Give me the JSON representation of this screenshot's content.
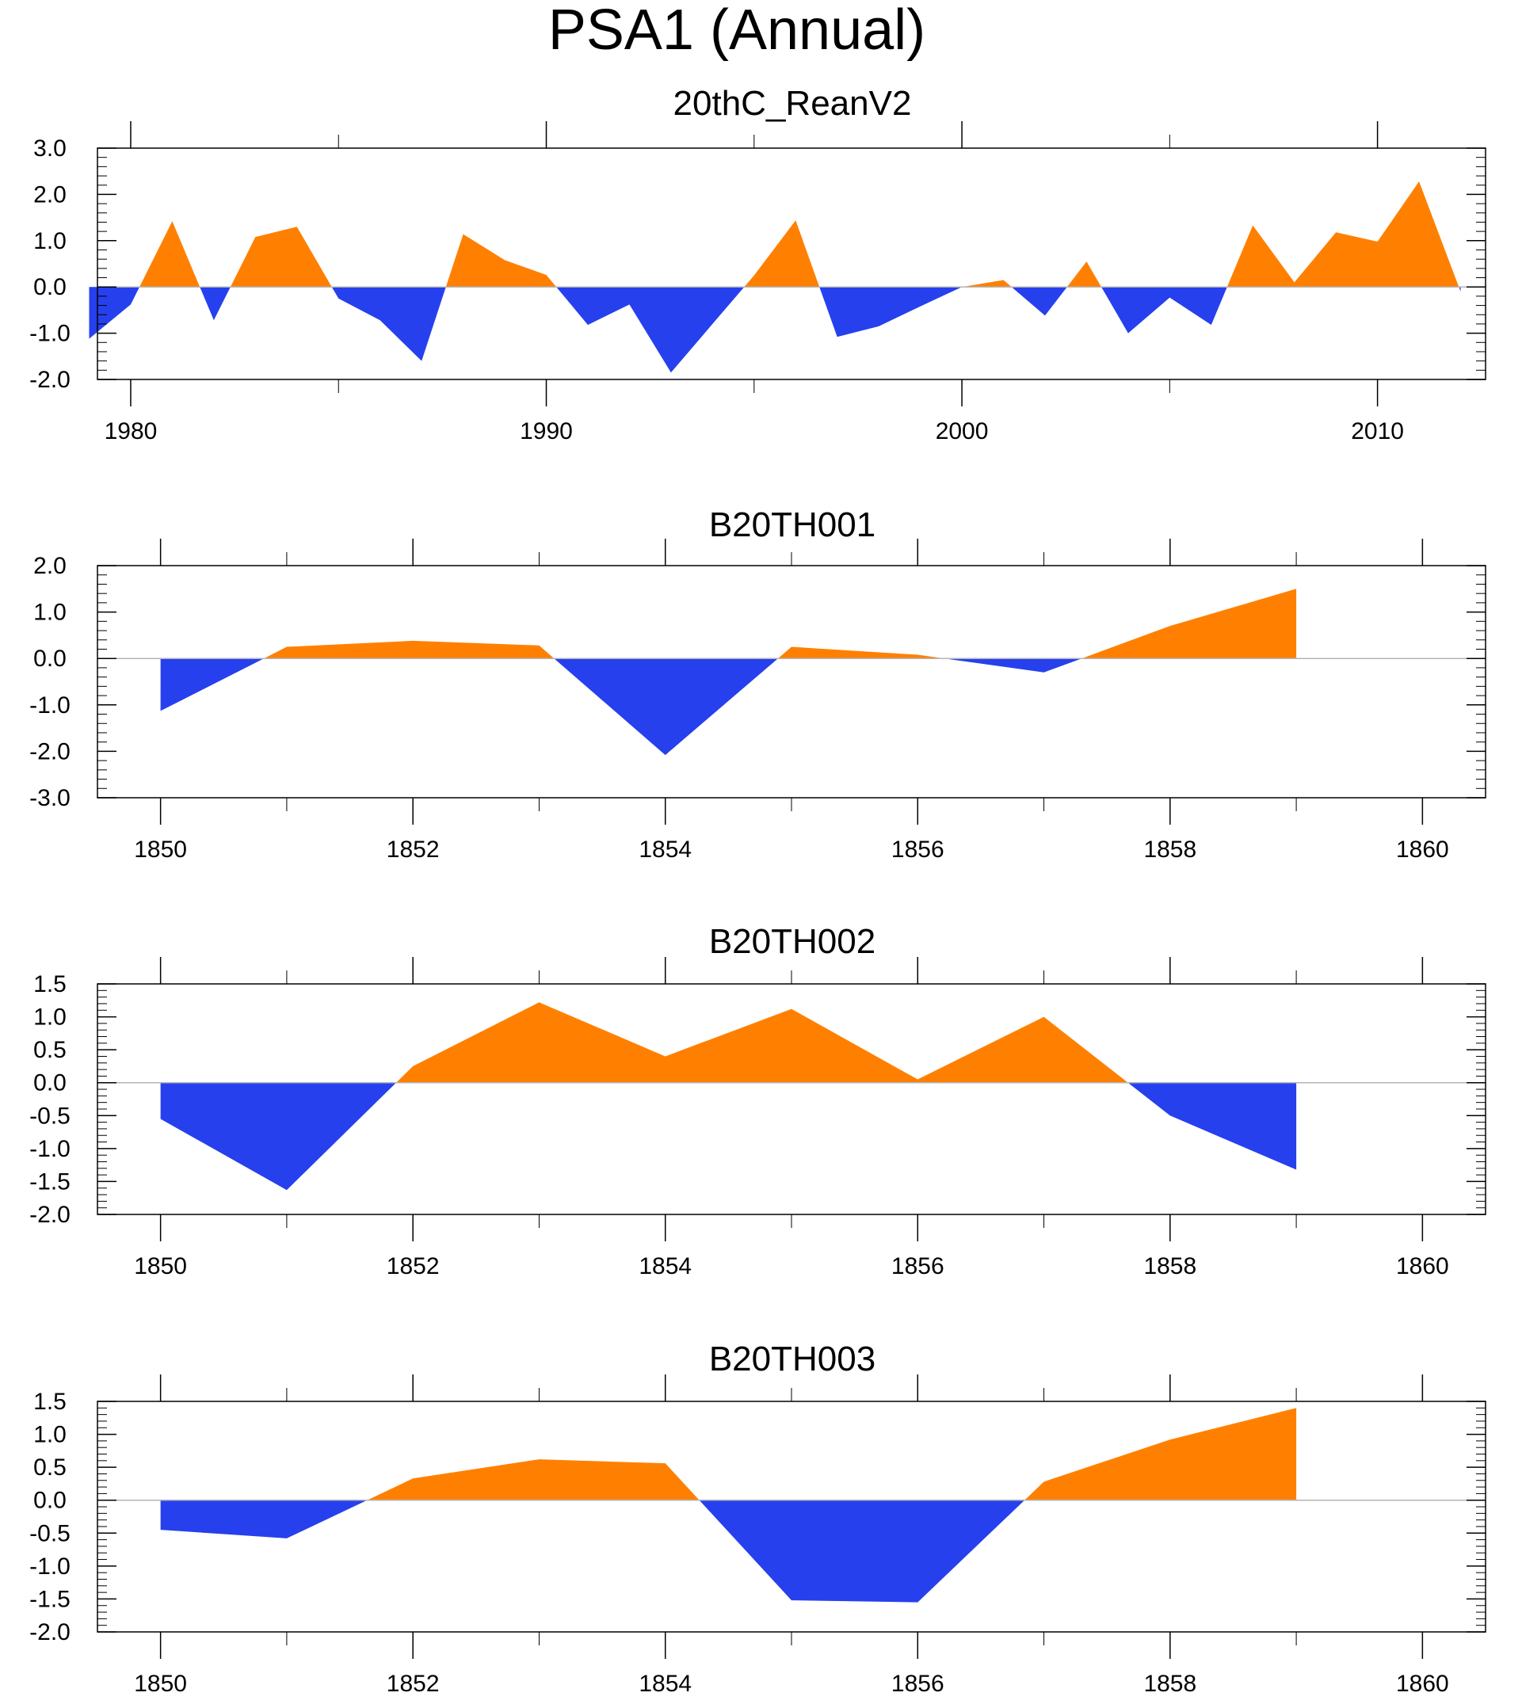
{
  "title": "PSA1 (Annual)",
  "colors": {
    "positive": "#ff8000",
    "negative": "#2640ee",
    "zero_line": "#b4b4b4",
    "axis": "#000000"
  },
  "chart_data": [
    {
      "type": "area",
      "title": "20thC_ReanV2",
      "x": [
        1979,
        1980,
        1981,
        1982,
        1983,
        1984,
        1985,
        1986,
        1987,
        1988,
        1989,
        1990,
        1991,
        1992,
        1993,
        1994,
        1995,
        1996,
        1997,
        1998,
        1999,
        2000,
        2001,
        2002,
        2003,
        2004,
        2005,
        2006,
        2007,
        2008,
        2009,
        2010,
        2011,
        2012
      ],
      "values": [
        -1.12,
        -0.38,
        1.42,
        -0.72,
        1.08,
        1.3,
        -0.25,
        -0.72,
        -1.6,
        1.14,
        0.58,
        0.26,
        -0.82,
        -0.38,
        -1.85,
        -0.8,
        0.25,
        1.44,
        -1.08,
        -0.85,
        -0.42,
        0.0,
        0.15,
        -0.62,
        0.55,
        -1.0,
        -0.23,
        -0.82,
        1.33,
        0.1,
        1.18,
        0.98,
        2.28,
        -0.1
      ],
      "xlim": [
        1979.2,
        2012.6
      ],
      "xticks": [
        1980,
        1990,
        2000,
        2010
      ],
      "xtick_labels": [
        "1980",
        "1990",
        "2000",
        "2010"
      ],
      "xminor": [
        1985,
        1995,
        2005
      ],
      "ylim": [
        -2.0,
        3.0
      ],
      "yticks": [
        -2.0,
        -1.0,
        0.0,
        1.0,
        2.0,
        3.0
      ],
      "ytick_labels": [
        "-2.0",
        "-1.0",
        "0.0",
        "1.0",
        "2.0",
        "3.0"
      ]
    },
    {
      "type": "area",
      "title": "B20TH001",
      "x": [
        1850,
        1851,
        1852,
        1853,
        1854,
        1855,
        1856,
        1857,
        1858,
        1859
      ],
      "values": [
        -1.13,
        0.25,
        0.38,
        0.28,
        -2.08,
        0.25,
        0.08,
        -0.3,
        0.7,
        1.5
      ],
      "xlim": [
        1849.5,
        1860.5
      ],
      "xticks": [
        1850,
        1852,
        1854,
        1856,
        1858,
        1860
      ],
      "xtick_labels": [
        "1850",
        "1852",
        "1854",
        "1856",
        "1858",
        "1860"
      ],
      "xminor": [
        1851,
        1853,
        1855,
        1857,
        1859
      ],
      "ylim": [
        -3.0,
        2.0
      ],
      "yticks": [
        -3.0,
        -2.0,
        -1.0,
        0.0,
        1.0,
        2.0
      ],
      "ytick_labels": [
        "-3.0",
        "-2.0",
        "-1.0",
        "0.0",
        "1.0",
        "2.0"
      ]
    },
    {
      "type": "area",
      "title": "B20TH002",
      "x": [
        1850,
        1851,
        1852,
        1853,
        1854,
        1855,
        1856,
        1857,
        1858,
        1859
      ],
      "values": [
        -0.55,
        -1.63,
        0.25,
        1.22,
        0.4,
        1.12,
        0.05,
        1.0,
        -0.5,
        -1.32
      ],
      "xlim": [
        1849.5,
        1860.5
      ],
      "xticks": [
        1850,
        1852,
        1854,
        1856,
        1858,
        1860
      ],
      "xtick_labels": [
        "1850",
        "1852",
        "1854",
        "1856",
        "1858",
        "1860"
      ],
      "xminor": [
        1851,
        1853,
        1855,
        1857,
        1859
      ],
      "ylim": [
        -2.0,
        1.5
      ],
      "yticks": [
        -2.0,
        -1.5,
        -1.0,
        -0.5,
        0.0,
        0.5,
        1.0,
        1.5
      ],
      "ytick_labels": [
        "-2.0",
        "-1.5",
        "-1.0",
        "-0.5",
        "0.0",
        "0.5",
        "1.0",
        "1.5"
      ]
    },
    {
      "type": "area",
      "title": "B20TH003",
      "x": [
        1850,
        1851,
        1852,
        1853,
        1854,
        1855,
        1856,
        1857,
        1858,
        1859
      ],
      "values": [
        -0.45,
        -0.58,
        0.33,
        0.62,
        0.56,
        -1.52,
        -1.55,
        0.28,
        0.92,
        1.4
      ],
      "xlim": [
        1849.5,
        1860.5
      ],
      "xticks": [
        1850,
        1852,
        1854,
        1856,
        1858,
        1860
      ],
      "xtick_labels": [
        "1850",
        "1852",
        "1854",
        "1856",
        "1858",
        "1860"
      ],
      "xminor": [
        1851,
        1853,
        1855,
        1857,
        1859
      ],
      "ylim": [
        -2.0,
        1.5
      ],
      "yticks": [
        -2.0,
        -1.5,
        -1.0,
        -0.5,
        0.0,
        0.5,
        1.0,
        1.5
      ],
      "ytick_labels": [
        "-2.0",
        "-1.5",
        "-1.0",
        "-0.5",
        "0.0",
        "0.5",
        "1.0",
        "1.5"
      ]
    }
  ]
}
